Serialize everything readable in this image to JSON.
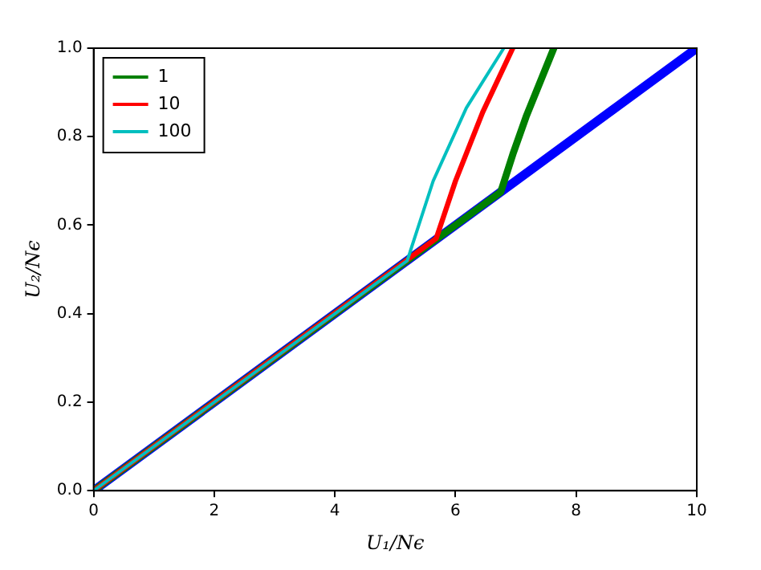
{
  "chart_data": {
    "type": "line",
    "xlabel": "U₁/Nϵ",
    "ylabel": "U₂/Nϵ",
    "xlim": [
      0,
      10
    ],
    "ylim": [
      0,
      1
    ],
    "xticks": [
      0,
      2,
      4,
      6,
      8,
      10
    ],
    "yticks": [
      {
        "value": 0,
        "label": "0.0"
      },
      {
        "value": 0.2,
        "label": "0.2"
      },
      {
        "value": 0.4,
        "label": "0.4"
      },
      {
        "value": 0.6,
        "label": "0.6"
      },
      {
        "value": 0.8,
        "label": "0.8"
      },
      {
        "value": 1,
        "label": "1.0"
      }
    ],
    "grid": false,
    "legend": "top left",
    "marker": "none",
    "line_style": "solid",
    "series": [
      {
        "color": "#0000ff",
        "x": [
          0,
          10
        ],
        "values": [
          0,
          1
        ]
      },
      {
        "name": "1",
        "color": "#008000",
        "x": [
          0,
          6.75,
          6.95,
          7.17,
          7.63
        ],
        "values": [
          0,
          0.675,
          0.76,
          0.845,
          1
        ]
      },
      {
        "name": "10",
        "color": "#ff0000",
        "x": [
          0,
          5.68,
          6.0,
          6.45,
          6.95
        ],
        "values": [
          0,
          0.57,
          0.7,
          0.855,
          1
        ]
      },
      {
        "name": "100",
        "color": "#00bfbf",
        "x": [
          0,
          5.2,
          5.63,
          6.18,
          6.8
        ],
        "values": [
          0,
          0.52,
          0.7,
          0.865,
          1
        ]
      }
    ]
  }
}
